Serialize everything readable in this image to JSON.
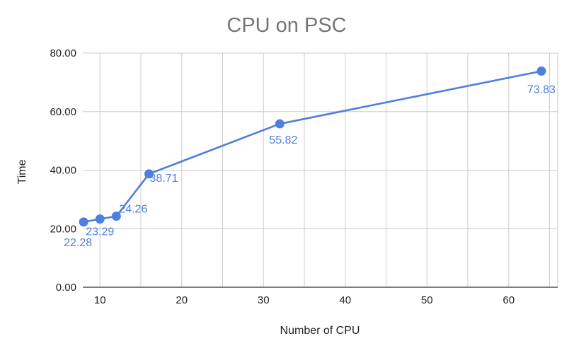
{
  "chart_data": {
    "type": "line",
    "title": "CPU on PSC",
    "xlabel": "Number of CPU",
    "ylabel": "Time",
    "x_ticks": [
      10,
      20,
      30,
      40,
      50,
      60
    ],
    "y_ticks": [
      "0.00",
      "20.00",
      "40.00",
      "60.00",
      "80.00"
    ],
    "xlim": [
      7.9,
      66
    ],
    "ylim": [
      0,
      80
    ],
    "grid": true,
    "series": [
      {
        "color": "#4f7fdd",
        "points": [
          {
            "x": 8,
            "y": 22.28,
            "label": "22.28"
          },
          {
            "x": 10,
            "y": 23.29,
            "label": "23.29"
          },
          {
            "x": 12,
            "y": 24.26,
            "label": "24.26"
          },
          {
            "x": 16,
            "y": 38.71,
            "label": "38.71"
          },
          {
            "x": 32,
            "y": 55.82,
            "label": "55.82"
          },
          {
            "x": 64,
            "y": 73.83,
            "label": "73.83"
          }
        ]
      }
    ]
  }
}
